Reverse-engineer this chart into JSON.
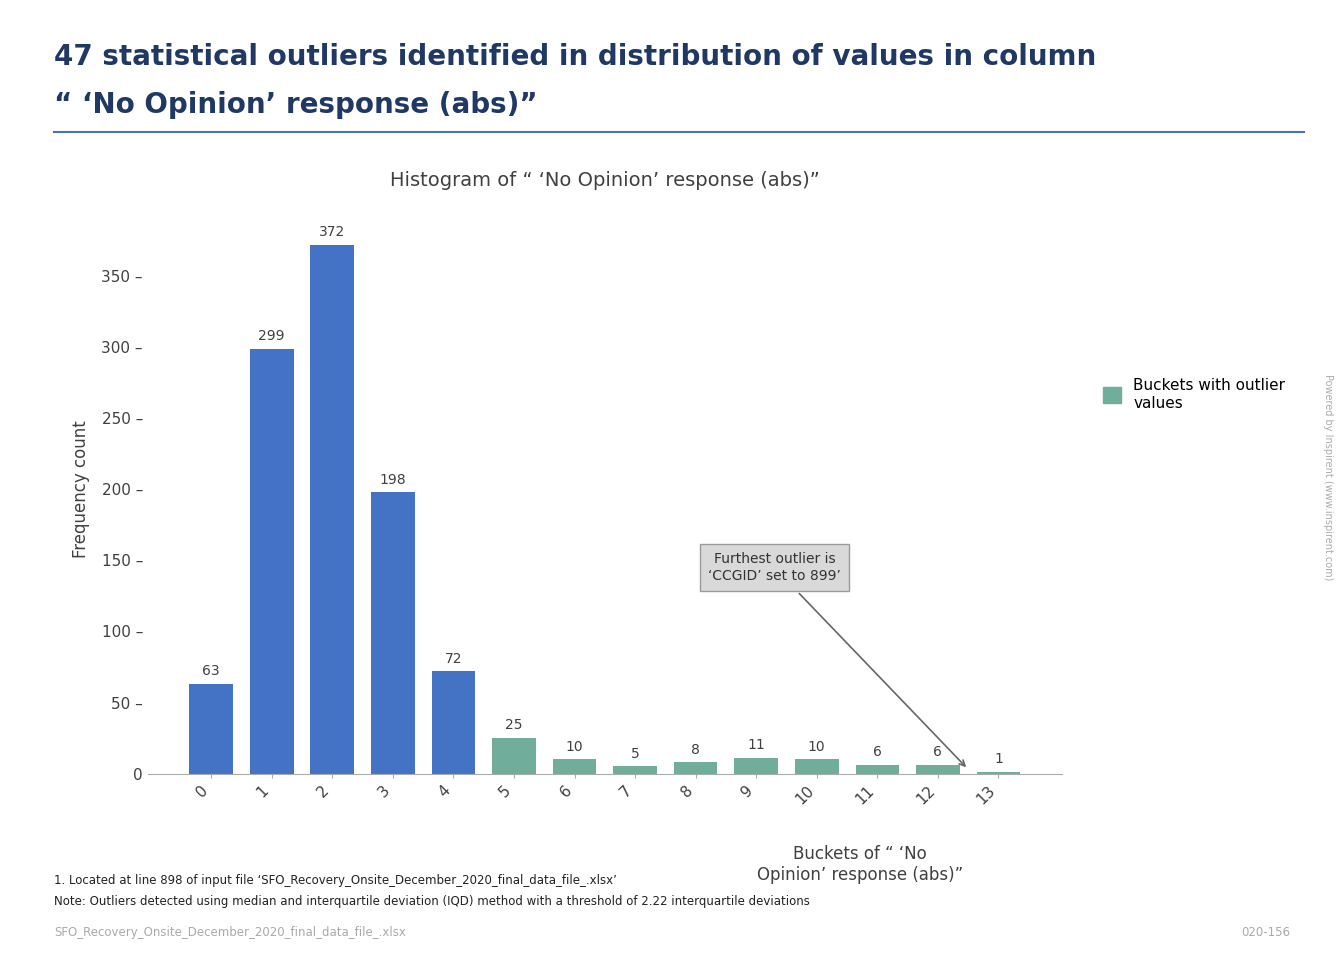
{
  "title_main_line1": "47 statistical outliers identified in distribution of values in column",
  "title_main_line2": "“ ‘No Opinion’ response (abs)”",
  "chart_title": "Histogram of “ ‘No Opinion’ response (abs)”",
  "xlabel_line1": "Buckets of “ ‘No",
  "xlabel_line2": "Opinion’ response (abs)”",
  "ylabel": "Frequency count",
  "categories": [
    "0",
    "1",
    "2",
    "3",
    "4",
    "5",
    "6",
    "7",
    "8",
    "9",
    "10",
    "11",
    "12",
    "13"
  ],
  "values": [
    63,
    299,
    372,
    198,
    72,
    25,
    10,
    5,
    8,
    11,
    10,
    6,
    6,
    1
  ],
  "outlier_threshold_idx": 5,
  "bar_color_normal": "#4472c4",
  "bar_color_outlier": "#70ad9b",
  "annotation_text": "Furthest outlier is\n‘CCGID’ set to 899’",
  "annotation_box_facecolor": "#d9d9d9",
  "annotation_box_edgecolor": "#999999",
  "legend_label": "Buckets with outlier\nvalues",
  "footnote1": "1. Located at line 898 of input file ‘SFO_Recovery_Onsite_December_2020_final_data_file_.xlsx’",
  "footnote2": "Note: Outliers detected using median and interquartile deviation (IQD) method with a threshold of 2.22 interquartile deviations",
  "footnote3": "SFO_Recovery_Onsite_December_2020_final_data_file_.xlsx",
  "footnote4": "020-156",
  "title_color": "#1f3864",
  "chart_title_color": "#404040",
  "axis_label_color": "#404040",
  "tick_label_color": "#404040",
  "side_text": "Powered by Inspirent (www.inspirent.com)",
  "separator_color": "#4472c4",
  "ylim": [
    0,
    400
  ],
  "yticks": [
    0,
    50,
    100,
    150,
    200,
    250,
    300,
    350
  ],
  "ytick_labels": [
    "0",
    "50 –",
    "100 –",
    "150 –",
    "200 –",
    "250 –",
    "300 –",
    "350 –"
  ]
}
